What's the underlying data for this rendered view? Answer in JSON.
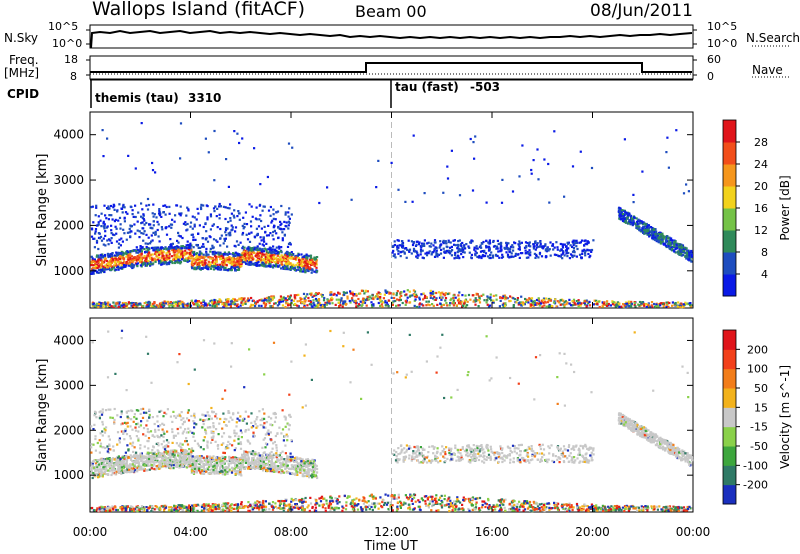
{
  "header": {
    "site": "Wallops Island (fitACF)",
    "beam": "Beam 00",
    "date": "08/Jun/2011"
  },
  "summary": {
    "nsky_label": "N.Sky",
    "nsky_ticks": [
      "10^5",
      "10^0"
    ],
    "nsearch_label": "N.Search",
    "nsearch_ticks": [
      "10^5",
      "10^0"
    ],
    "freq_label": "Freq.",
    "freq_unit": "[MHz]",
    "freq_ticks": [
      "18",
      "8"
    ],
    "nave_label": "Nave",
    "nave_ticks": [
      "60",
      "0"
    ],
    "cpid_label": "CPID",
    "cpid_segments": [
      {
        "name": "themis (tau)",
        "id": "3310",
        "start_hour": 0
      },
      {
        "name": "tau (fast)",
        "id": "-503",
        "start_hour": 12
      }
    ]
  },
  "chart_data": [
    {
      "type": "heatmap",
      "title": "",
      "xlabel": "Time UT",
      "ylabel": "Slant Range [km]",
      "x_ticks": [
        "00:00",
        "04:00",
        "08:00",
        "12:00",
        "16:00",
        "20:00",
        "00:00"
      ],
      "xlim_hours": [
        0,
        24
      ],
      "y_ticks": [
        1000,
        2000,
        3000,
        4000
      ],
      "ylim": [
        180,
        4500
      ],
      "marker_hour": 12,
      "colorbar": {
        "label": "Power [dB]",
        "ticks": [
          "4",
          "8",
          "12",
          "16",
          "20",
          "24",
          "28"
        ],
        "colors": [
          "#0a1ae6",
          "#1e4dbf",
          "#2f8a5a",
          "#74c247",
          "#f2d21c",
          "#f5961c",
          "#f24e1a",
          "#e0141a"
        ]
      }
    },
    {
      "type": "heatmap",
      "title": "",
      "xlabel": "Time UT",
      "ylabel": "Slant Range [km]",
      "x_ticks": [
        "00:00",
        "04:00",
        "08:00",
        "12:00",
        "16:00",
        "20:00",
        "00:00"
      ],
      "xlim_hours": [
        0,
        24
      ],
      "y_ticks": [
        1000,
        2000,
        3000,
        4000
      ],
      "ylim": [
        180,
        4500
      ],
      "marker_hour": 12,
      "colorbar": {
        "label": "Velocity [m s^-1]",
        "ticks": [
          "200",
          "100",
          "50",
          "15",
          "-15",
          "-50",
          "-100",
          "-200"
        ],
        "colors": [
          "#1a2fbf",
          "#2f7a66",
          "#3da63d",
          "#8ad14a",
          "#c8c8c8",
          "#f2b21c",
          "#f27d1a",
          "#f2401a",
          "#e0141a"
        ]
      }
    }
  ]
}
